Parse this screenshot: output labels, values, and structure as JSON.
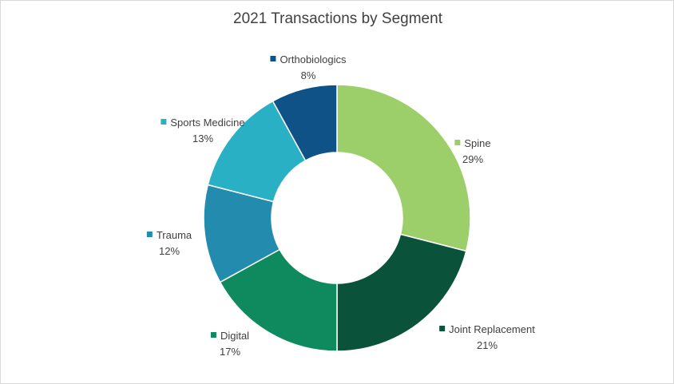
{
  "chart_data": {
    "type": "donut",
    "title": "2021 Transactions by Segment",
    "legend": "data-labels",
    "slices": [
      {
        "label": "Spine",
        "value": 29,
        "display": "29%",
        "color": "#9ccf6a"
      },
      {
        "label": "Joint Replacement",
        "value": 21,
        "display": "21%",
        "color": "#0b523a"
      },
      {
        "label": "Digital",
        "value": 17,
        "display": "17%",
        "color": "#0f8a5f"
      },
      {
        "label": "Trauma",
        "value": 12,
        "display": "12%",
        "color": "#238bad"
      },
      {
        "label": "Sports Medicine",
        "value": 13,
        "display": "13%",
        "color": "#2ab0c4"
      },
      {
        "label": "Orthobiologics",
        "value": 8,
        "display": "8%",
        "color": "#0e5287"
      }
    ]
  }
}
